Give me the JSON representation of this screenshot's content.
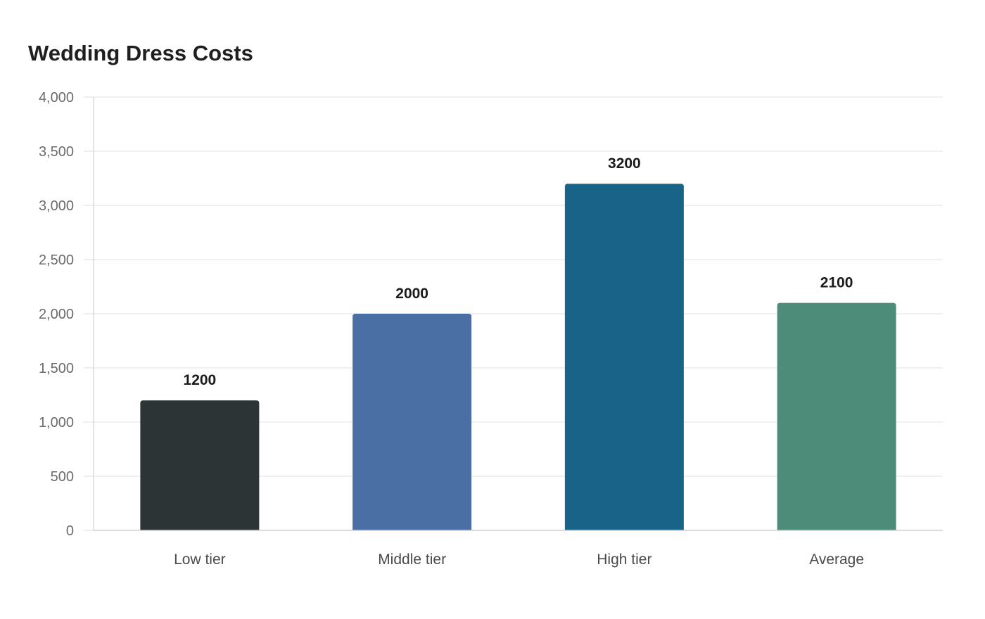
{
  "chart_data": {
    "type": "bar",
    "title": "Wedding Dress Costs",
    "categories": [
      "Low tier",
      "Middle tier",
      "High tier",
      "Average"
    ],
    "values": [
      1200,
      2000,
      3200,
      2100
    ],
    "colors": [
      "#2d3436",
      "#4a6fa5",
      "#196388",
      "#4e8c7a"
    ],
    "ylim": [
      0,
      4000
    ],
    "yticks": [
      0,
      500,
      1000,
      1500,
      2000,
      2500,
      3000,
      3500,
      4000
    ],
    "ytick_labels": [
      "0",
      "500",
      "1,000",
      "1,500",
      "2,000",
      "2,500",
      "3,000",
      "3,500",
      "4,000"
    ],
    "grid": true,
    "xlabel": "",
    "ylabel": ""
  }
}
